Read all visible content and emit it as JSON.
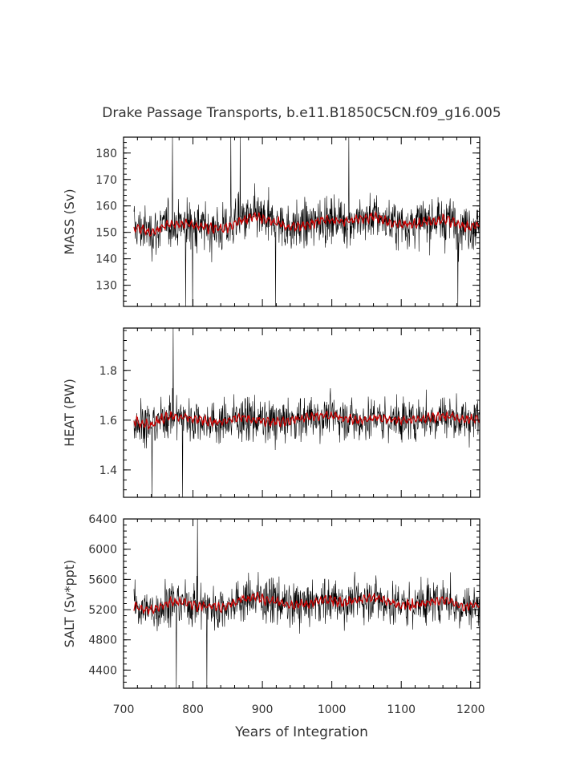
{
  "chart_data": {
    "type": "line",
    "title": "Drake Passage Transports, b.e11.B1850C5CN.f09_g16.005",
    "xlabel": "Years of Integration",
    "xlim": [
      700,
      1213
    ],
    "x_ticks": [
      700,
      800,
      900,
      1000,
      1100,
      1200
    ],
    "series_colors": {
      "raw": "#000000",
      "smoothed": "#cc0000"
    },
    "panels": [
      {
        "ylabel": "MASS (Sv)",
        "ylim": [
          122,
          186
        ],
        "y_ticks": [
          130,
          140,
          150,
          160,
          170,
          180
        ],
        "mean": 153,
        "noise_amplitude": 10,
        "x": [
          715,
          740,
          765,
          790,
          815,
          840,
          865,
          890,
          915,
          940,
          965,
          990,
          1015,
          1040,
          1065,
          1090,
          1115,
          1140,
          1165,
          1190,
          1213
        ],
        "smoothed_values": [
          152,
          150,
          153,
          153,
          152,
          151,
          154,
          156,
          154,
          152,
          153,
          155,
          154,
          155,
          156,
          153,
          153,
          154,
          155,
          152,
          153
        ],
        "max_value": 186,
        "min_value": 122
      },
      {
        "ylabel": "HEAT (PW)",
        "ylim": [
          1.29,
          1.97
        ],
        "y_ticks": [
          1.4,
          1.6,
          1.8
        ],
        "mean": 1.6,
        "noise_amplitude": 0.1,
        "x": [
          715,
          740,
          765,
          790,
          815,
          840,
          865,
          890,
          915,
          940,
          965,
          990,
          1015,
          1040,
          1065,
          1090,
          1115,
          1140,
          1165,
          1190,
          1213
        ],
        "smoothed_values": [
          1.6,
          1.58,
          1.62,
          1.61,
          1.6,
          1.59,
          1.61,
          1.6,
          1.59,
          1.6,
          1.61,
          1.62,
          1.61,
          1.6,
          1.61,
          1.6,
          1.6,
          1.61,
          1.62,
          1.6,
          1.61
        ],
        "max_value": 1.97,
        "min_value": 1.29
      },
      {
        "ylabel": "SALT (Sv*ppt)",
        "ylim": [
          4160,
          6400
        ],
        "y_ticks": [
          4400,
          4800,
          5200,
          5600,
          6000,
          6400
        ],
        "mean": 5270,
        "noise_amplitude": 340,
        "x": [
          715,
          740,
          765,
          790,
          815,
          840,
          865,
          890,
          915,
          940,
          965,
          990,
          1015,
          1040,
          1065,
          1090,
          1115,
          1140,
          1165,
          1190,
          1213
        ],
        "smoothed_values": [
          5250,
          5180,
          5300,
          5290,
          5260,
          5230,
          5320,
          5370,
          5320,
          5250,
          5270,
          5330,
          5300,
          5330,
          5360,
          5270,
          5260,
          5300,
          5330,
          5230,
          5270
        ],
        "max_value": 6400,
        "min_value": 4160
      }
    ]
  }
}
